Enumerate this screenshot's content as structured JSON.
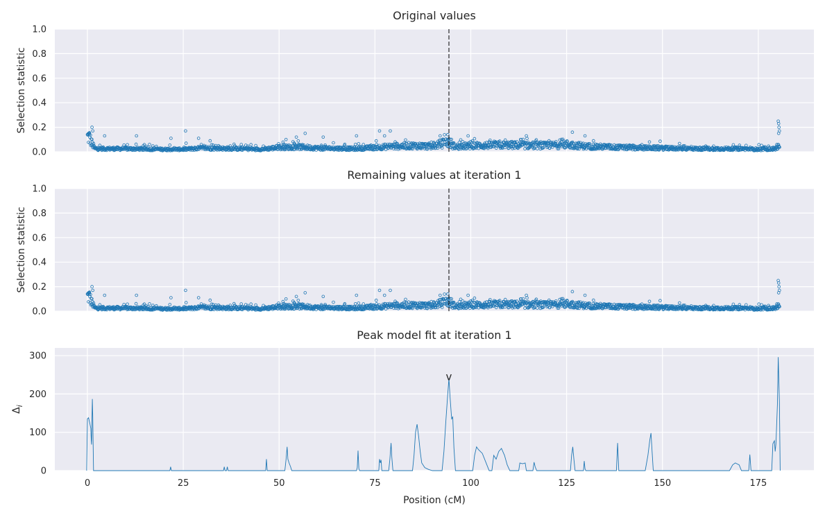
{
  "chart_data": [
    {
      "type": "scatter",
      "title": "Original values",
      "xlabel": "",
      "ylabel": "Selection statistic",
      "xlim": [
        -8.5,
        189.5
      ],
      "ylim": [
        0,
        1.0
      ],
      "yticks": [
        "0.0",
        "0.2",
        "0.4",
        "0.6",
        "0.8",
        "1.0"
      ],
      "xticks": [
        0,
        25,
        50,
        75,
        100,
        125,
        150,
        175
      ],
      "marker_line_x": 94.3,
      "baseline": [
        [
          0,
          0.12
        ],
        [
          0.5,
          0.12
        ],
        [
          1.3,
          0.06
        ],
        [
          2,
          0.025
        ],
        [
          10,
          0.025
        ],
        [
          20,
          0.02
        ],
        [
          25,
          0.02
        ],
        [
          30,
          0.03
        ],
        [
          40,
          0.025
        ],
        [
          45,
          0.02
        ],
        [
          50,
          0.035
        ],
        [
          55,
          0.04
        ],
        [
          60,
          0.03
        ],
        [
          70,
          0.025
        ],
        [
          75,
          0.035
        ],
        [
          80,
          0.045
        ],
        [
          85,
          0.05
        ],
        [
          90,
          0.045
        ],
        [
          94,
          0.08
        ],
        [
          96,
          0.04
        ],
        [
          100,
          0.05
        ],
        [
          110,
          0.055
        ],
        [
          120,
          0.05
        ],
        [
          125,
          0.06
        ],
        [
          130,
          0.045
        ],
        [
          140,
          0.035
        ],
        [
          150,
          0.03
        ],
        [
          160,
          0.025
        ],
        [
          170,
          0.025
        ],
        [
          175,
          0.02
        ],
        [
          179.5,
          0.025
        ],
        [
          180,
          0.05
        ],
        [
          180.5,
          0.03
        ]
      ],
      "outliers": [
        [
          0.3,
          0.15
        ],
        [
          0.5,
          0.14
        ],
        [
          1.2,
          0.2
        ],
        [
          1.4,
          0.17
        ],
        [
          4.5,
          0.13
        ],
        [
          12.8,
          0.13
        ],
        [
          21.8,
          0.11
        ],
        [
          25.6,
          0.17
        ],
        [
          29,
          0.11
        ],
        [
          32,
          0.09
        ],
        [
          51.8,
          0.1
        ],
        [
          54.5,
          0.12
        ],
        [
          56.8,
          0.15
        ],
        [
          61.5,
          0.12
        ],
        [
          70.2,
          0.13
        ],
        [
          76.2,
          0.17
        ],
        [
          77.5,
          0.13
        ],
        [
          79,
          0.17
        ],
        [
          92,
          0.13
        ],
        [
          94,
          0.14
        ],
        [
          99.3,
          0.13
        ],
        [
          113,
          0.1
        ],
        [
          114.5,
          0.13
        ],
        [
          126.5,
          0.16
        ],
        [
          129.8,
          0.13
        ],
        [
          132,
          0.09
        ],
        [
          146.6,
          0.08
        ],
        [
          180.2,
          0.25
        ],
        [
          180.3,
          0.23
        ],
        [
          180.4,
          0.2
        ],
        [
          180.5,
          0.17
        ],
        [
          180.3,
          0.15
        ]
      ]
    },
    {
      "type": "scatter",
      "title": "Remaining values at iteration 1",
      "xlabel": "",
      "ylabel": "Selection statistic",
      "xlim": [
        -8.5,
        189.5
      ],
      "ylim": [
        0,
        1.0
      ],
      "yticks": [
        "0.0",
        "0.2",
        "0.4",
        "0.6",
        "0.8",
        "1.0"
      ],
      "xticks": [
        0,
        25,
        50,
        75,
        100,
        125,
        150,
        175
      ],
      "marker_line_x": 94.3,
      "same_values_as_panel": 1
    },
    {
      "type": "line",
      "title": "Peak model fit at iteration 1",
      "xlabel": "Position (cM)",
      "ylabel": "Δ",
      "ylabel_subscript": "i",
      "xlim": [
        -8.5,
        189.5
      ],
      "ylim": [
        0,
        320
      ],
      "yticks": [
        0,
        100,
        200,
        300
      ],
      "xticks": [
        0,
        25,
        50,
        75,
        100,
        125,
        150,
        175
      ],
      "peak_marker": {
        "x": 94.3,
        "y": 240,
        "label": "v"
      },
      "points": [
        [
          -0.2,
          0
        ],
        [
          0,
          135
        ],
        [
          0.3,
          138
        ],
        [
          0.6,
          125
        ],
        [
          0.9,
          110
        ],
        [
          1.0,
          80
        ],
        [
          1.1,
          68
        ],
        [
          1.2,
          140
        ],
        [
          1.3,
          187
        ],
        [
          1.4,
          140
        ],
        [
          1.5,
          60
        ],
        [
          1.6,
          0
        ],
        [
          21.5,
          0
        ],
        [
          21.7,
          10
        ],
        [
          21.9,
          0
        ],
        [
          35.5,
          0
        ],
        [
          35.7,
          10
        ],
        [
          35.9,
          0
        ],
        [
          36.3,
          0
        ],
        [
          36.5,
          10
        ],
        [
          36.7,
          0
        ],
        [
          46.5,
          0
        ],
        [
          46.7,
          30
        ],
        [
          46.9,
          0
        ],
        [
          51.5,
          0
        ],
        [
          51.8,
          28
        ],
        [
          52.1,
          62
        ],
        [
          52.3,
          30
        ],
        [
          52.6,
          20
        ],
        [
          53.0,
          10
        ],
        [
          53.3,
          0
        ],
        [
          70.2,
          0
        ],
        [
          70.4,
          8
        ],
        [
          70.6,
          52
        ],
        [
          70.8,
          5
        ],
        [
          71.0,
          0
        ],
        [
          76.0,
          0
        ],
        [
          76.2,
          30
        ],
        [
          76.4,
          20
        ],
        [
          76.6,
          28
        ],
        [
          76.8,
          0
        ],
        [
          78.6,
          0
        ],
        [
          78.9,
          30
        ],
        [
          79.2,
          72
        ],
        [
          79.4,
          35
        ],
        [
          79.7,
          0
        ],
        [
          84.8,
          0
        ],
        [
          85.2,
          40
        ],
        [
          85.6,
          100
        ],
        [
          86.0,
          121
        ],
        [
          86.4,
          90
        ],
        [
          86.8,
          50
        ],
        [
          87.2,
          20
        ],
        [
          88.0,
          8
        ],
        [
          89.0,
          3
        ],
        [
          90.0,
          0
        ],
        [
          92.5,
          0
        ],
        [
          93.0,
          50
        ],
        [
          93.5,
          130
        ],
        [
          94.0,
          200
        ],
        [
          94.3,
          240
        ],
        [
          94.6,
          190
        ],
        [
          95.0,
          135
        ],
        [
          95.3,
          140
        ],
        [
          95.6,
          60
        ],
        [
          96.0,
          0
        ],
        [
          100.5,
          0
        ],
        [
          101.0,
          40
        ],
        [
          101.5,
          62
        ],
        [
          102.0,
          55
        ],
        [
          103.0,
          45
        ],
        [
          104.0,
          20
        ],
        [
          104.8,
          0
        ],
        [
          105.5,
          0
        ],
        [
          106.0,
          40
        ],
        [
          106.6,
          30
        ],
        [
          107.3,
          50
        ],
        [
          108.0,
          58
        ],
        [
          108.8,
          40
        ],
        [
          109.5,
          15
        ],
        [
          110.2,
          0
        ],
        [
          112.5,
          0
        ],
        [
          112.8,
          20
        ],
        [
          113.5,
          18
        ],
        [
          114.2,
          20
        ],
        [
          114.5,
          0
        ],
        [
          116.2,
          0
        ],
        [
          116.5,
          22
        ],
        [
          116.8,
          10
        ],
        [
          117.2,
          0
        ],
        [
          126.0,
          0
        ],
        [
          126.3,
          40
        ],
        [
          126.6,
          62
        ],
        [
          126.9,
          30
        ],
        [
          127.2,
          0
        ],
        [
          129.4,
          0
        ],
        [
          129.6,
          25
        ],
        [
          129.8,
          5
        ],
        [
          130.0,
          0
        ],
        [
          138.0,
          0
        ],
        [
          138.3,
          72
        ],
        [
          138.6,
          0
        ],
        [
          145.5,
          0
        ],
        [
          146.2,
          40
        ],
        [
          146.7,
          80
        ],
        [
          147.0,
          98
        ],
        [
          147.3,
          50
        ],
        [
          147.6,
          0
        ],
        [
          167.5,
          0
        ],
        [
          168.3,
          15
        ],
        [
          169.0,
          20
        ],
        [
          170.0,
          15
        ],
        [
          170.6,
          0
        ],
        [
          172.5,
          0
        ],
        [
          172.8,
          42
        ],
        [
          173.1,
          0
        ],
        [
          178.5,
          0
        ],
        [
          178.8,
          70
        ],
        [
          179.2,
          78
        ],
        [
          179.4,
          50
        ],
        [
          179.6,
          70
        ],
        [
          180.0,
          176
        ],
        [
          180.2,
          296
        ],
        [
          180.5,
          180
        ],
        [
          180.7,
          0
        ]
      ]
    }
  ],
  "styles": {
    "panel_bg": "#eaeaf2",
    "grid": "#ffffff",
    "series_color": "#1f77b4",
    "vline_color": "#000000",
    "text_color": "#262626"
  }
}
